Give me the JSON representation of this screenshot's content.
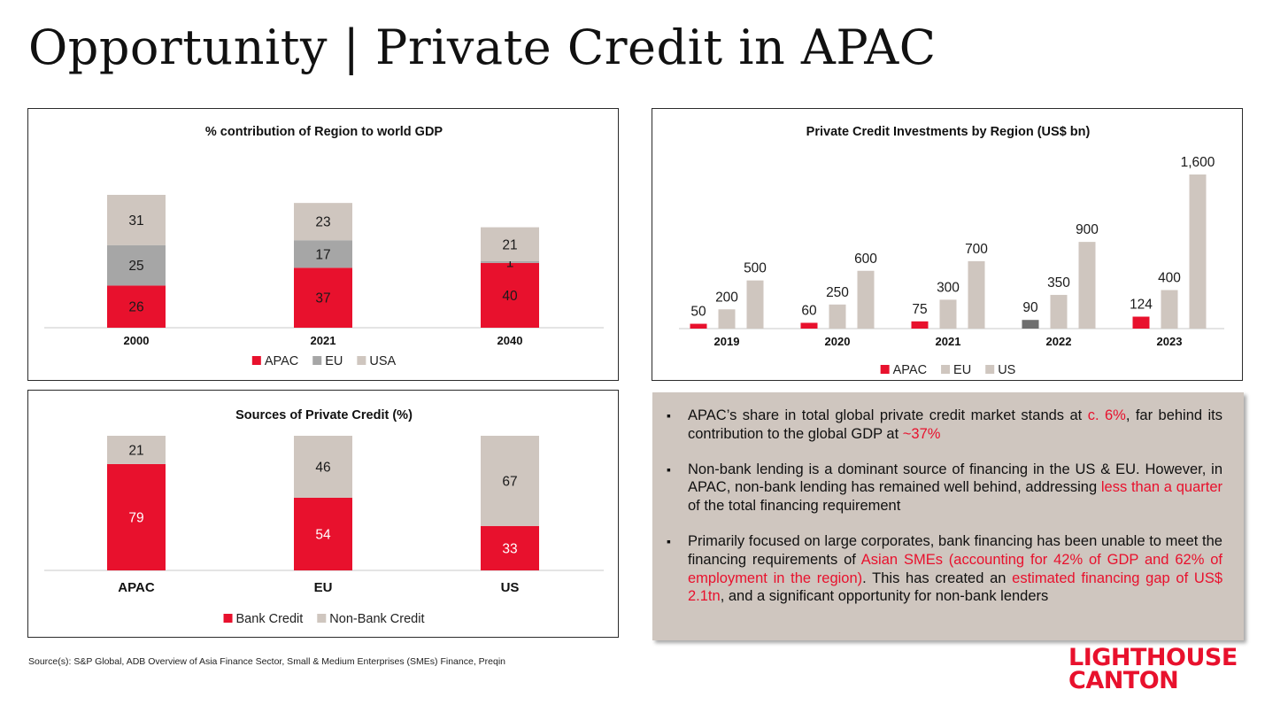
{
  "page": {
    "title": "Opportunity | Private Credit in APAC",
    "source": "Source(s): S&P Global, ADB Overview of Asia Finance Sector, Small & Medium Enterprises (SMEs) Finance, Preqin"
  },
  "colors": {
    "apac_red": "#e8112d",
    "eu_grey": "#a6a6a6",
    "us_beige": "#cfc6bf",
    "apac_2022_dark": "#6e6e6e",
    "text_box_bg": "#cfc6bf"
  },
  "logo": {
    "line1": "LIGHTHOUSE",
    "line2": "CANTON"
  },
  "bullets": [
    {
      "parts": [
        {
          "text": "APAC’s share in total global private credit market stands at ",
          "hl": false
        },
        {
          "text": "c. 6%",
          "hl": true
        },
        {
          "text": ", far behind its contribution to the global GDP at ",
          "hl": false
        },
        {
          "text": "~37%",
          "hl": true
        }
      ]
    },
    {
      "parts": [
        {
          "text": "Non-bank lending is a dominant source of financing in the US & EU. However, in APAC, non-bank lending has remained well behind, addressing ",
          "hl": false
        },
        {
          "text": "less than a quarter",
          "hl": true
        },
        {
          "text": " of the total financing requirement",
          "hl": false
        }
      ]
    },
    {
      "parts": [
        {
          "text": "Primarily focused on large corporates, bank financing has been unable to meet the financing requirements of ",
          "hl": false
        },
        {
          "text": "Asian SMEs (accounting for 42% of GDP and 62% of employment in the region)",
          "hl": true
        },
        {
          "text": ". This has created an ",
          "hl": false
        },
        {
          "text": "estimated financing gap of US$ 2.1tn",
          "hl": true
        },
        {
          "text": ", and a significant opportunity for non-bank lenders",
          "hl": false
        }
      ]
    }
  ],
  "chart_data": [
    {
      "id": "gdp",
      "type": "bar",
      "stacked": true,
      "title": "% contribution of Region to world GDP",
      "categories": [
        "2000",
        "2021",
        "2040"
      ],
      "series": [
        {
          "name": "APAC",
          "color": "#e8112d",
          "values": [
            26,
            37,
            40
          ]
        },
        {
          "name": "EU",
          "color": "#a6a6a6",
          "values": [
            25,
            17,
            1
          ]
        },
        {
          "name": "USA",
          "color": "#cfc6bf",
          "values": [
            31,
            23,
            21
          ]
        }
      ],
      "ylim": [
        0,
        82
      ],
      "legend": "bottom",
      "grid": false
    },
    {
      "id": "investments",
      "type": "bar",
      "stacked": false,
      "title": "Private Credit Investments by Region (US$ bn)",
      "categories": [
        "2019",
        "2020",
        "2021",
        "2022",
        "2023"
      ],
      "series": [
        {
          "name": "APAC",
          "color": "#e8112d",
          "values": [
            50,
            60,
            75,
            90,
            124
          ],
          "labels": [
            "50",
            "60",
            "75",
            "90",
            "124"
          ]
        },
        {
          "name": "EU",
          "color": "#cfc6bf",
          "values": [
            200,
            250,
            300,
            350,
            400
          ],
          "labels": [
            "200",
            "250",
            "300",
            "350",
            "400"
          ]
        },
        {
          "name": "US",
          "color": "#cfc6bf",
          "values": [
            500,
            600,
            700,
            900,
            1600
          ],
          "labels": [
            "500",
            "600",
            "700",
            "900",
            "1,600"
          ]
        }
      ],
      "legend_entries": [
        {
          "name": "APAC",
          "color": "#e8112d"
        },
        {
          "name": "EU",
          "color": "#cfc6bf"
        },
        {
          "name": "US",
          "color": "#cfc6bf"
        }
      ],
      "highlight": {
        "series": "APAC",
        "category": "2022",
        "color": "#6e6e6e"
      },
      "ylim": [
        0,
        1600
      ],
      "legend": "bottom",
      "grid": false
    },
    {
      "id": "sources",
      "type": "bar",
      "stacked": true,
      "title": "Sources of Private Credit (%)",
      "categories": [
        "APAC",
        "EU",
        "US"
      ],
      "series": [
        {
          "name": "Bank Credit",
          "color": "#e8112d",
          "values": [
            79,
            54,
            33
          ]
        },
        {
          "name": "Non-Bank Credit",
          "color": "#cfc6bf",
          "values": [
            21,
            46,
            67
          ]
        }
      ],
      "ylim": [
        0,
        100
      ],
      "legend": "bottom",
      "grid": false
    }
  ]
}
